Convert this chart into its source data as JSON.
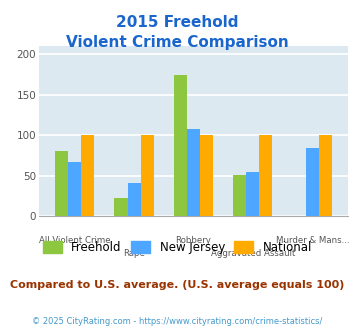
{
  "title_line1": "2015 Freehold",
  "title_line2": "Violent Crime Comparison",
  "categories": [
    "All Violent Crime",
    "Rape",
    "Robbery",
    "Aggravated Assault",
    "Murder & Mans..."
  ],
  "series": {
    "Freehold": [
      80,
      23,
      174,
      51,
      0
    ],
    "New Jersey": [
      67,
      41,
      108,
      55,
      84
    ],
    "National": [
      100,
      100,
      100,
      100,
      100
    ]
  },
  "colors": {
    "Freehold": "#8dc63f",
    "New Jersey": "#4da6ff",
    "National": "#ffaa00"
  },
  "ylim": [
    0,
    210
  ],
  "yticks": [
    0,
    50,
    100,
    150,
    200
  ],
  "bg_color": "#dce9f0",
  "grid_color": "#ffffff",
  "subtitle_text": "Compared to U.S. average. (U.S. average equals 100)",
  "footer_text": "© 2025 CityRating.com - https://www.cityrating.com/crime-statistics/",
  "title_color": "#1a66cc",
  "subtitle_color": "#993300",
  "footer_color": "#4499cc",
  "bar_width": 0.22,
  "xtick_labels_even": [
    "All Violent Crime",
    "Robbery",
    "Murder & Mans..."
  ],
  "xtick_labels_odd": [
    "Rape",
    "Aggravated Assault"
  ]
}
